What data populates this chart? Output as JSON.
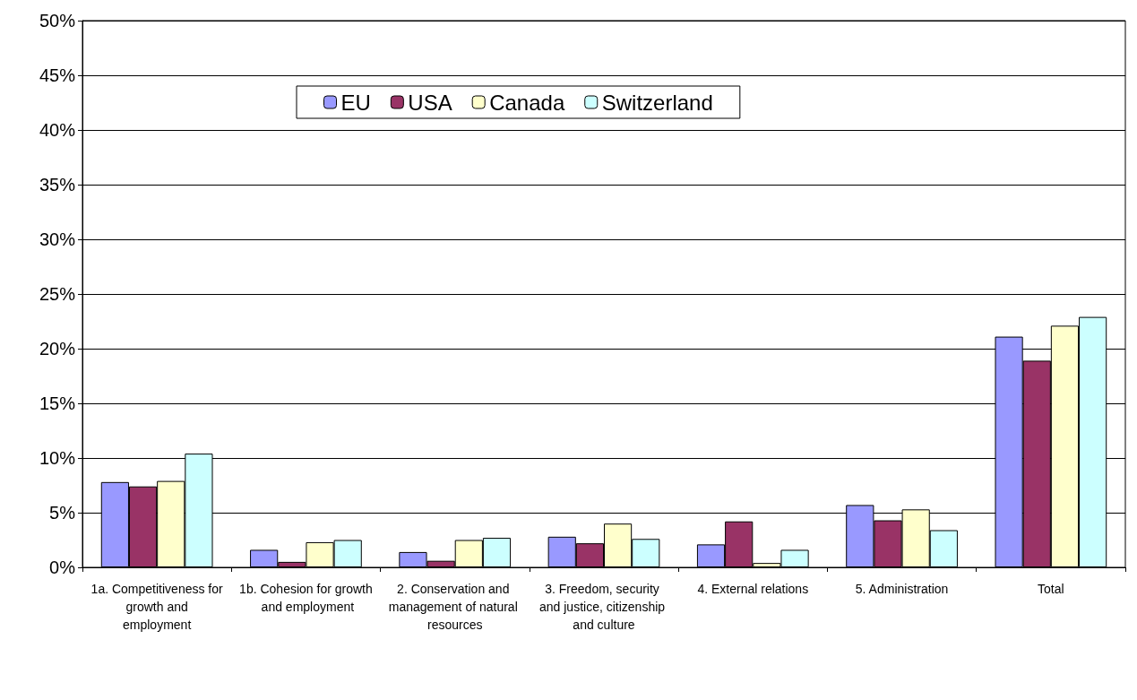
{
  "chart_data": {
    "type": "bar",
    "categories": [
      "1a. Competitiveness for growth and employment",
      "1b. Cohesion for growth and employment",
      "2. Conservation and management of natural resources",
      "3. Freedom, security and justice, citizenship and culture",
      "4. External relations",
      "5. Administration",
      "Total"
    ],
    "series": [
      {
        "name": "EU",
        "color": "#9999ff",
        "values": [
          7.8,
          1.6,
          1.4,
          2.8,
          2.1,
          5.7,
          21.1
        ]
      },
      {
        "name": "USA",
        "color": "#993366",
        "values": [
          7.4,
          0.5,
          0.6,
          2.2,
          4.2,
          4.3,
          18.9
        ]
      },
      {
        "name": "Canada",
        "color": "#ffffcc",
        "values": [
          7.9,
          2.3,
          2.5,
          4.0,
          0.4,
          5.3,
          22.1
        ]
      },
      {
        "name": "Switzerland",
        "color": "#ccffff",
        "values": [
          10.4,
          2.5,
          2.7,
          2.6,
          1.6,
          3.4,
          22.9
        ]
      }
    ],
    "ylim": [
      0,
      50
    ],
    "yticks": [
      {
        "value": 0,
        "label": "0%"
      },
      {
        "value": 5,
        "label": "5%"
      },
      {
        "value": 10,
        "label": "10%"
      },
      {
        "value": 15,
        "label": "15%"
      },
      {
        "value": 20,
        "label": "20%"
      },
      {
        "value": 25,
        "label": "25%"
      },
      {
        "value": 30,
        "label": "30%"
      },
      {
        "value": 35,
        "label": "35%"
      },
      {
        "value": 40,
        "label": "40%"
      },
      {
        "value": 45,
        "label": "45%"
      },
      {
        "value": 50,
        "label": "50%"
      }
    ],
    "grid": "y",
    "legend": "top"
  }
}
